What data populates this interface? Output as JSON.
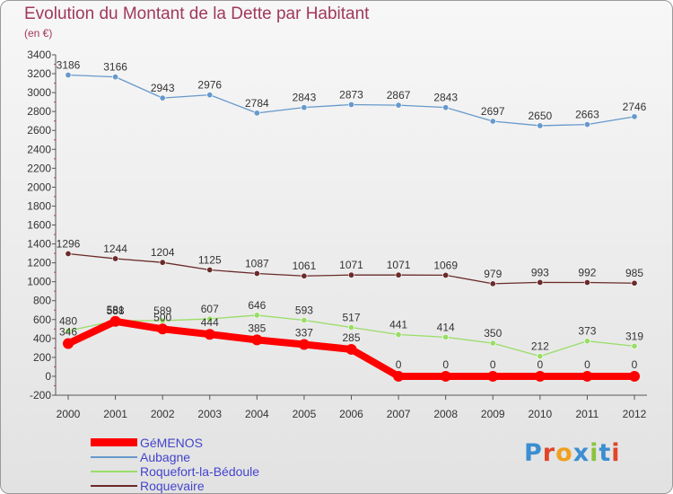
{
  "header": {
    "title": "Evolution du Montant de la Dette par Habitant",
    "unit": "(en €)"
  },
  "brand": {
    "logo_text": "Proxiti"
  },
  "chart_data": {
    "type": "line",
    "title": "Evolution du Montant de la Dette par Habitant",
    "subtitle": "(en €)",
    "xlabel": "",
    "ylabel": "",
    "x": [
      2000,
      2001,
      2002,
      2003,
      2004,
      2005,
      2006,
      2007,
      2008,
      2009,
      2010,
      2011,
      2012
    ],
    "ylim": [
      -200,
      3400
    ],
    "yticks": [
      -200,
      0,
      200,
      400,
      600,
      800,
      1000,
      1200,
      1400,
      1600,
      1800,
      2000,
      2200,
      2400,
      2600,
      2800,
      3000,
      3200,
      3400
    ],
    "grid": false,
    "legend_position": "bottom-left",
    "series": [
      {
        "name": "GéMENOS",
        "color": "#ff0000",
        "values": [
          346,
          581,
          500,
          444,
          385,
          337,
          285,
          0,
          0,
          0,
          0,
          0,
          0
        ],
        "show_labels": true
      },
      {
        "name": "Aubagne",
        "color": "#6699cc",
        "values": [
          3186,
          3166,
          2943,
          2976,
          2784,
          2843,
          2873,
          2867,
          2843,
          2697,
          2650,
          2663,
          2746
        ],
        "show_labels": true
      },
      {
        "name": "Roquefort-la-Bédoule",
        "color": "#99dd66",
        "values": [
          480,
          588,
          589,
          607,
          646,
          593,
          517,
          441,
          414,
          350,
          212,
          373,
          319
        ],
        "show_labels": true
      },
      {
        "name": "Roquevaire",
        "color": "#6b2a2a",
        "values": [
          1296,
          1244,
          1204,
          1125,
          1087,
          1061,
          1071,
          1071,
          1069,
          979,
          993,
          992,
          985
        ],
        "show_labels": true
      }
    ]
  }
}
